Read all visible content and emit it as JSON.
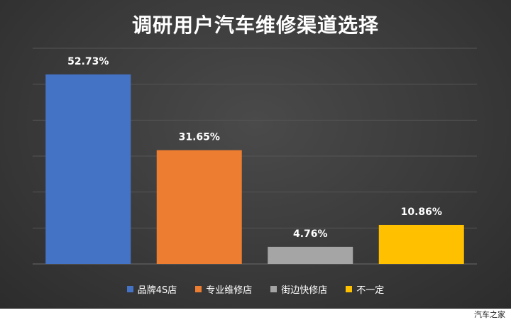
{
  "title": "调研用户汽车维修渠道选择",
  "watermark": "汽车之家",
  "chart_data": {
    "type": "bar",
    "categories": [
      "品牌4S店",
      "专业维修店",
      "街边快修店",
      "不一定"
    ],
    "values": [
      52.73,
      31.65,
      4.76,
      10.86
    ],
    "data_labels": [
      "52.73%",
      "31.65%",
      "4.76%",
      "10.86%"
    ],
    "colors": [
      "#4472c4",
      "#ed7d31",
      "#a5a5a5",
      "#ffc000"
    ],
    "ylim": [
      0,
      60
    ],
    "grid": true,
    "legend_position": "bottom",
    "title": "调研用户汽车维修渠道选择"
  }
}
